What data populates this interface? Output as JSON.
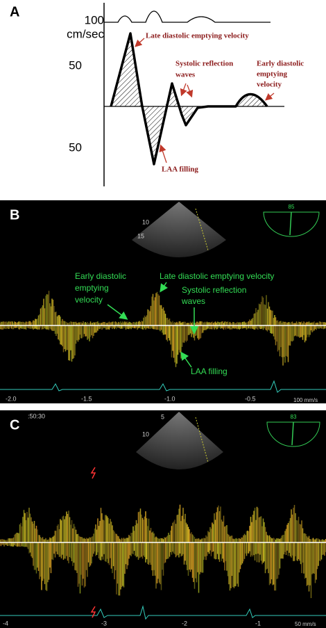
{
  "panel_a": {
    "label": "A",
    "axis": {
      "top": "100",
      "unit": "cm/sec",
      "upper": "50",
      "lower": "50"
    },
    "annotations": {
      "late_diastolic": "Late diastolic emptying velocity",
      "systolic_reflection": [
        "Systolic reflection",
        "waves"
      ],
      "early_diastolic": [
        "Early diastolic",
        "emptying",
        "velocity"
      ],
      "laa_filling": "LAA filling"
    }
  },
  "panel_b": {
    "label": "B",
    "scale_mark": "85",
    "depth_marks": [
      "10",
      "15"
    ],
    "annotations": {
      "early_diastolic": [
        "Early diastolic",
        "emptying",
        "velocity"
      ],
      "late_diastolic": "Late diastolic emptying velocity",
      "systolic_reflection": [
        "Systolic reflection",
        "waves"
      ],
      "laa_filling": "LAA filling"
    },
    "time_axis": [
      "-2.0",
      "-1.5",
      "-1.0",
      "-0.5"
    ],
    "sweep_speed": "100 mm/s"
  },
  "panel_c": {
    "label": "C",
    "timestamp": ":50:30",
    "scale_mark": "83",
    "depth_marks": [
      "10",
      "5"
    ],
    "time_axis": [
      "-4",
      "-3",
      "-2",
      "-1"
    ],
    "sweep_speed": "50 mm/s"
  }
}
